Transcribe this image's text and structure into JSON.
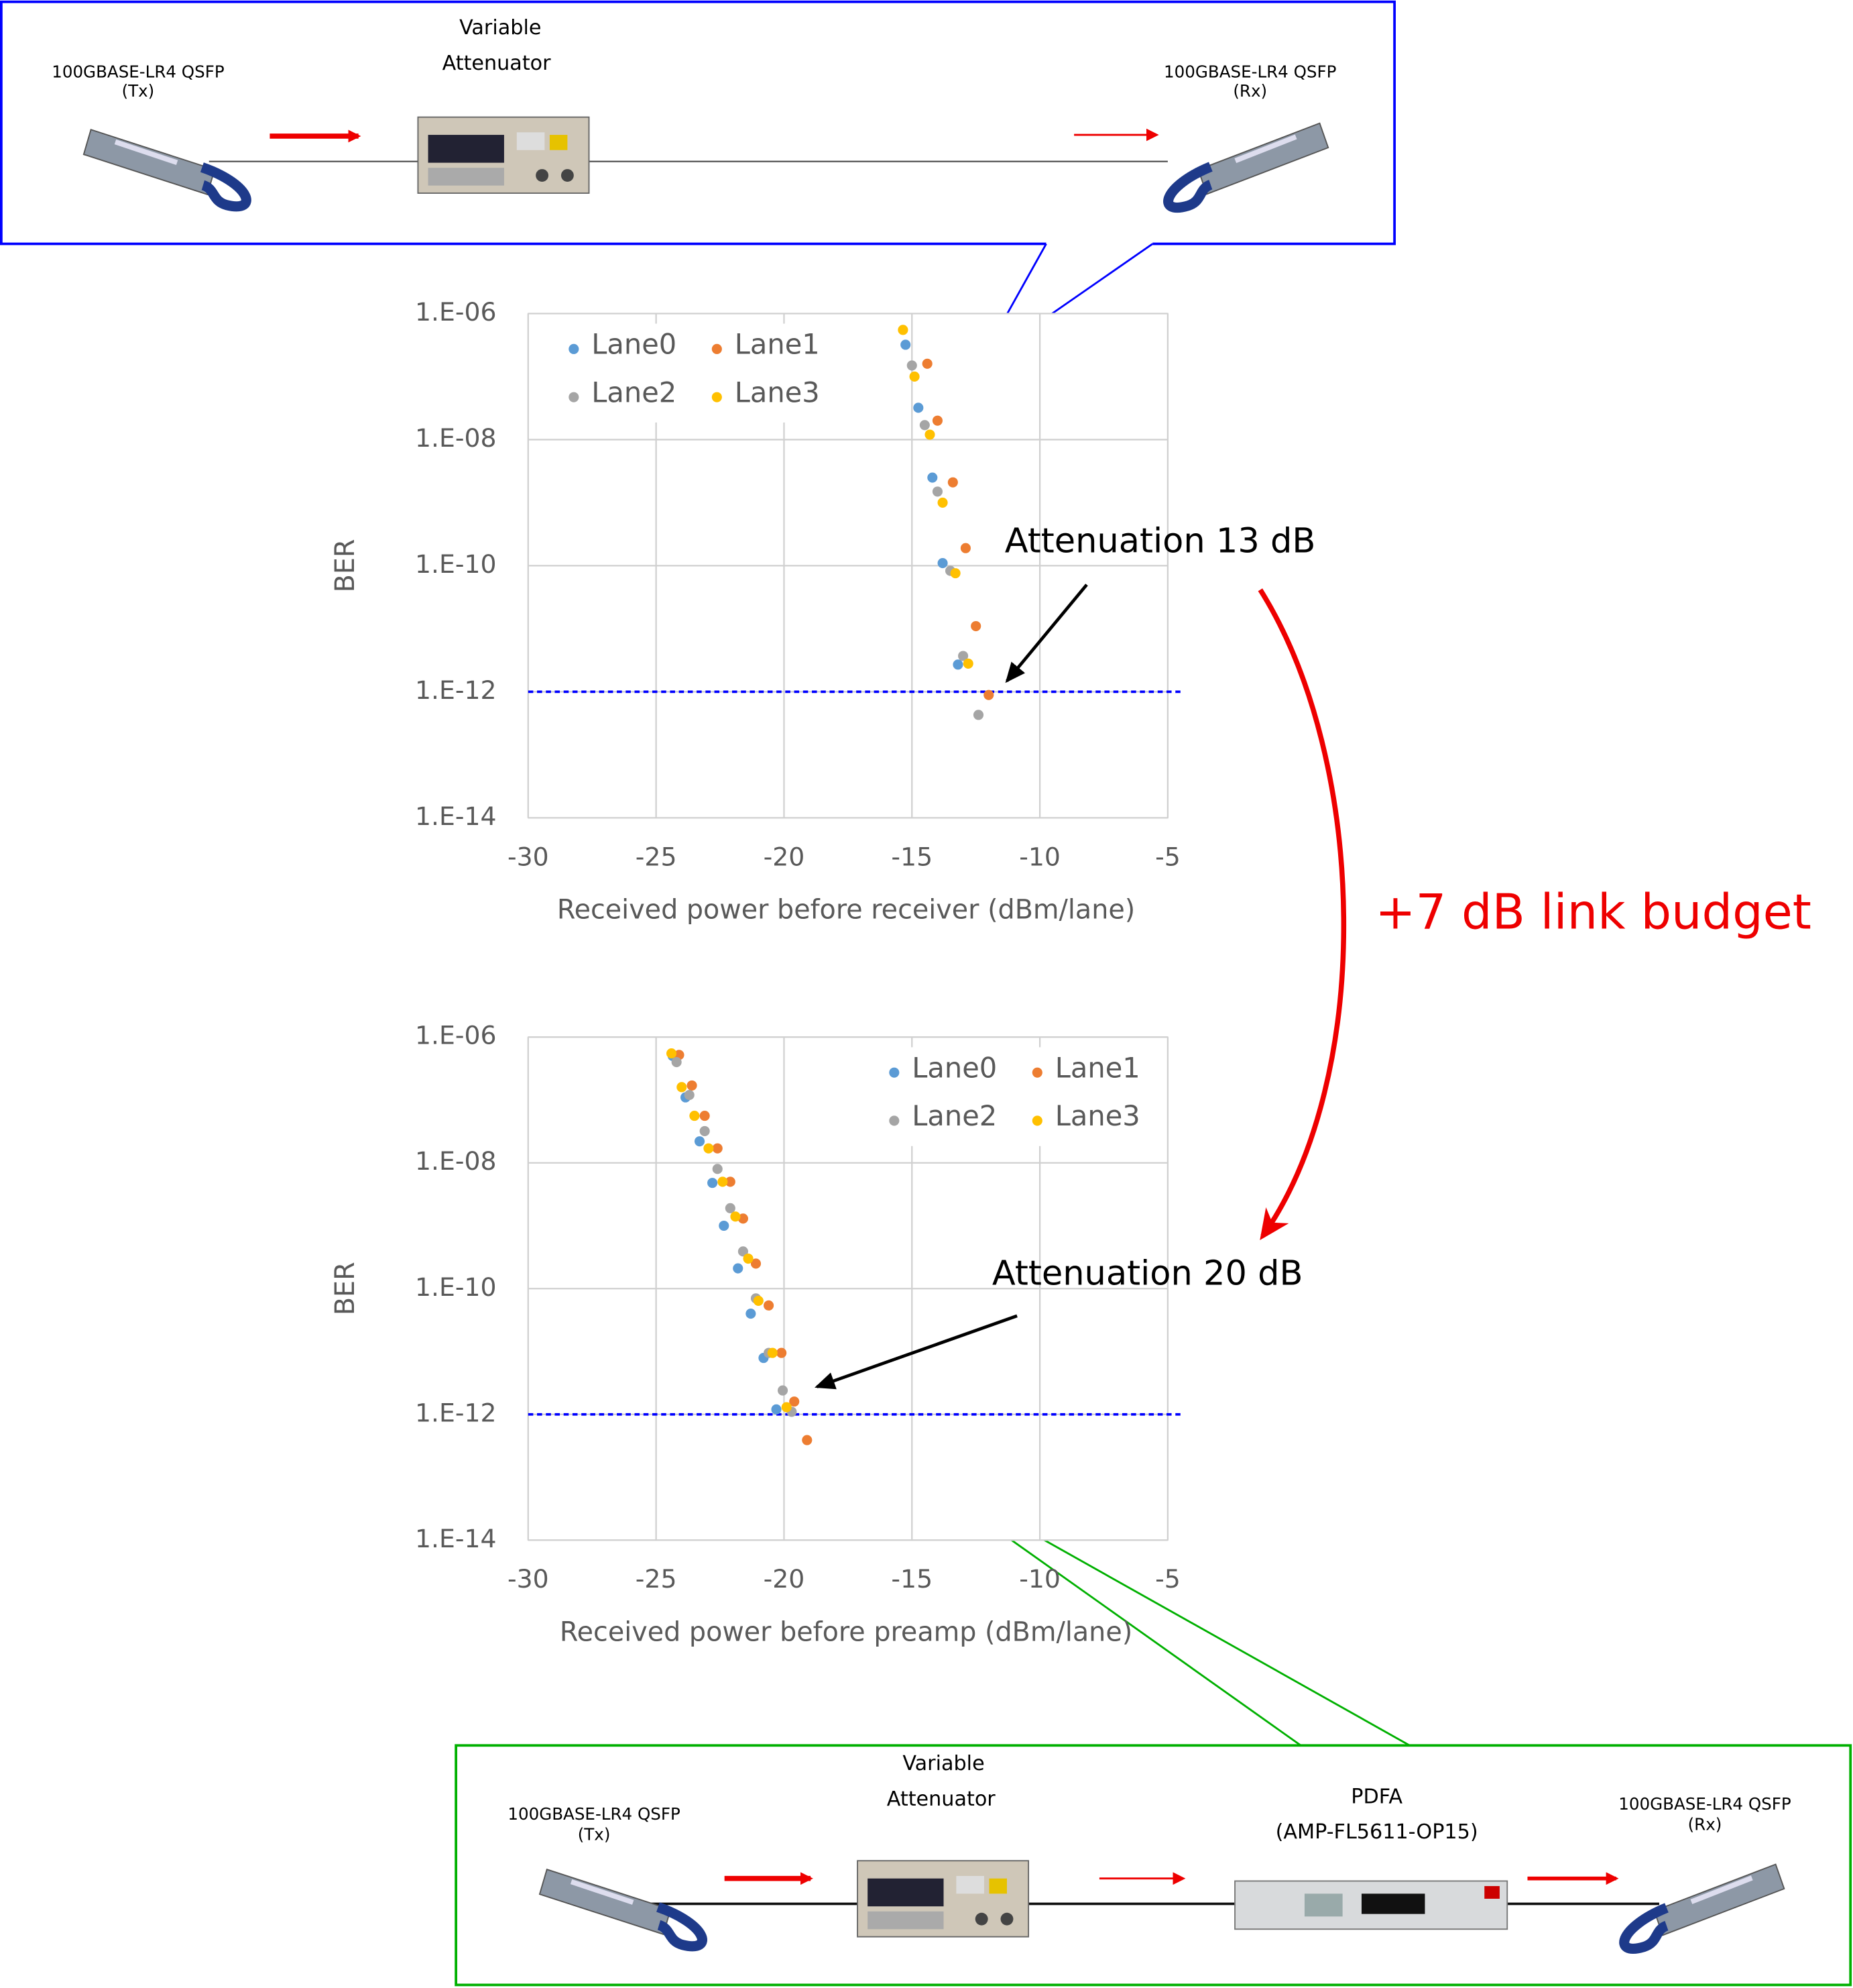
{
  "chart_data": [
    {
      "type": "scatter",
      "x_label": "Received power before receiver (dBm/lane)",
      "y_label": "BER",
      "log_y": true,
      "grid": true,
      "legend": "upper left",
      "xlim": [
        -30,
        -5
      ],
      "xticks": [
        -30,
        -25,
        -20,
        -15,
        -10,
        -5
      ],
      "ylim": [
        1e-14,
        1e-06
      ],
      "yticks": [
        {
          "value": 1e-06,
          "label": "1.E-06"
        },
        {
          "value": 1e-08,
          "label": "1.E-08"
        },
        {
          "value": 1e-10,
          "label": "1.E-10"
        },
        {
          "value": 1e-12,
          "label": "1.E-12"
        },
        {
          "value": 1e-14,
          "label": "1.E-14"
        }
      ],
      "threshold": {
        "value": 1e-12,
        "color": "#0000ff"
      },
      "annotation": "Attenuation 13 dB",
      "series": [
        {
          "name": "Lane0",
          "color": "#5b9bd5",
          "x": [
            -15.25,
            -14.75,
            -14.2,
            -13.8,
            -13.2
          ],
          "values": [
            3.2e-07,
            3.2e-08,
            2.5e-09,
            1.1e-10,
            2.7e-12
          ]
        },
        {
          "name": "Lane1",
          "color": "#ed7d31",
          "x": [
            -14.4,
            -14.0,
            -13.4,
            -12.9,
            -12.5,
            -12.0
          ],
          "values": [
            1.6e-07,
            2e-08,
            2.1e-09,
            1.9e-10,
            1.1e-11,
            8.9e-13
          ]
        },
        {
          "name": "Lane2",
          "color": "#a5a5a5",
          "x": [
            -15.0,
            -14.5,
            -14.0,
            -13.5,
            -13.0,
            -12.4
          ],
          "values": [
            1.5e-07,
            1.7e-08,
            1.5e-09,
            8.3e-11,
            3.7e-12,
            4.3e-13
          ]
        },
        {
          "name": "Lane3",
          "color": "#ffc000",
          "x": [
            -15.35,
            -14.9,
            -14.3,
            -13.8,
            -13.3,
            -12.8
          ],
          "values": [
            5.5e-07,
            1e-07,
            1.2e-08,
            1e-09,
            7.6e-11,
            2.8e-12
          ]
        }
      ]
    },
    {
      "type": "scatter",
      "x_label": "Received power before preamp (dBm/lane)",
      "y_label": "BER",
      "log_y": true,
      "grid": true,
      "legend": "upper right",
      "xlim": [
        -30,
        -5
      ],
      "xticks": [
        -30,
        -25,
        -20,
        -15,
        -10,
        -5
      ],
      "ylim": [
        1e-14,
        1e-06
      ],
      "yticks": [
        {
          "value": 1e-06,
          "label": "1.E-06"
        },
        {
          "value": 1e-08,
          "label": "1.E-08"
        },
        {
          "value": 1e-10,
          "label": "1.E-10"
        },
        {
          "value": 1e-12,
          "label": "1.E-12"
        },
        {
          "value": 1e-14,
          "label": "1.E-14"
        }
      ],
      "threshold": {
        "value": 1e-12,
        "color": "#0000ff"
      },
      "annotation": "Attenuation 20 dB",
      "series": [
        {
          "name": "Lane0",
          "color": "#5b9bd5",
          "x": [
            -24.35,
            -23.85,
            -23.3,
            -22.8,
            -22.35,
            -21.8,
            -21.3,
            -20.8,
            -20.3
          ],
          "values": [
            5e-07,
            1.1e-07,
            2.2e-08,
            4.8e-09,
            1e-09,
            2.1e-10,
            4e-11,
            7.9e-12,
            1.2e-12
          ]
        },
        {
          "name": "Lane1",
          "color": "#ed7d31",
          "x": [
            -24.1,
            -23.6,
            -23.1,
            -22.6,
            -22.1,
            -21.6,
            -21.1,
            -20.6,
            -20.1,
            -19.6,
            -19.1
          ],
          "values": [
            5.2e-07,
            1.7e-07,
            5.6e-08,
            1.7e-08,
            5e-09,
            1.3e-09,
            2.5e-10,
            5.4e-11,
            9.5e-12,
            1.6e-12,
            3.9e-13
          ]
        },
        {
          "name": "Lane2",
          "color": "#a5a5a5",
          "x": [
            -24.2,
            -23.7,
            -23.1,
            -22.6,
            -22.1,
            -21.6,
            -21.1,
            -20.6,
            -20.05,
            -19.7
          ],
          "values": [
            4e-07,
            1.2e-07,
            3.2e-08,
            8e-09,
            1.9e-09,
            3.9e-10,
            7e-11,
            9.5e-12,
            2.4e-12,
            1.1e-12
          ]
        },
        {
          "name": "Lane3",
          "color": "#ffc000",
          "x": [
            -24.4,
            -24.0,
            -23.5,
            -22.95,
            -22.4,
            -21.9,
            -21.4,
            -21.0,
            -20.45,
            -19.9
          ],
          "values": [
            5.5e-07,
            1.6e-07,
            5.6e-08,
            1.7e-08,
            5e-09,
            1.4e-09,
            3e-10,
            6.4e-11,
            9.5e-12,
            1.3e-12
          ]
        }
      ]
    }
  ],
  "link_budget": "+7 dB link budget",
  "diagrams": {
    "top": {
      "tx": [
        "100GBASE-LR4 QSFP",
        "(Tx)"
      ],
      "attenuator": [
        "Variable",
        "Attenuator"
      ],
      "rx": [
        "100GBASE-LR4 QSFP",
        "(Rx)"
      ]
    },
    "bottom": {
      "tx": [
        "100GBASE-LR4 QSFP",
        "(Tx)"
      ],
      "attenuator": [
        "Variable",
        "Attenuator"
      ],
      "pdfa": [
        "PDFA",
        "(AMP-FL5611-OP15)"
      ],
      "rx": [
        "100GBASE-LR4 QSFP",
        "(Rx)"
      ]
    }
  }
}
